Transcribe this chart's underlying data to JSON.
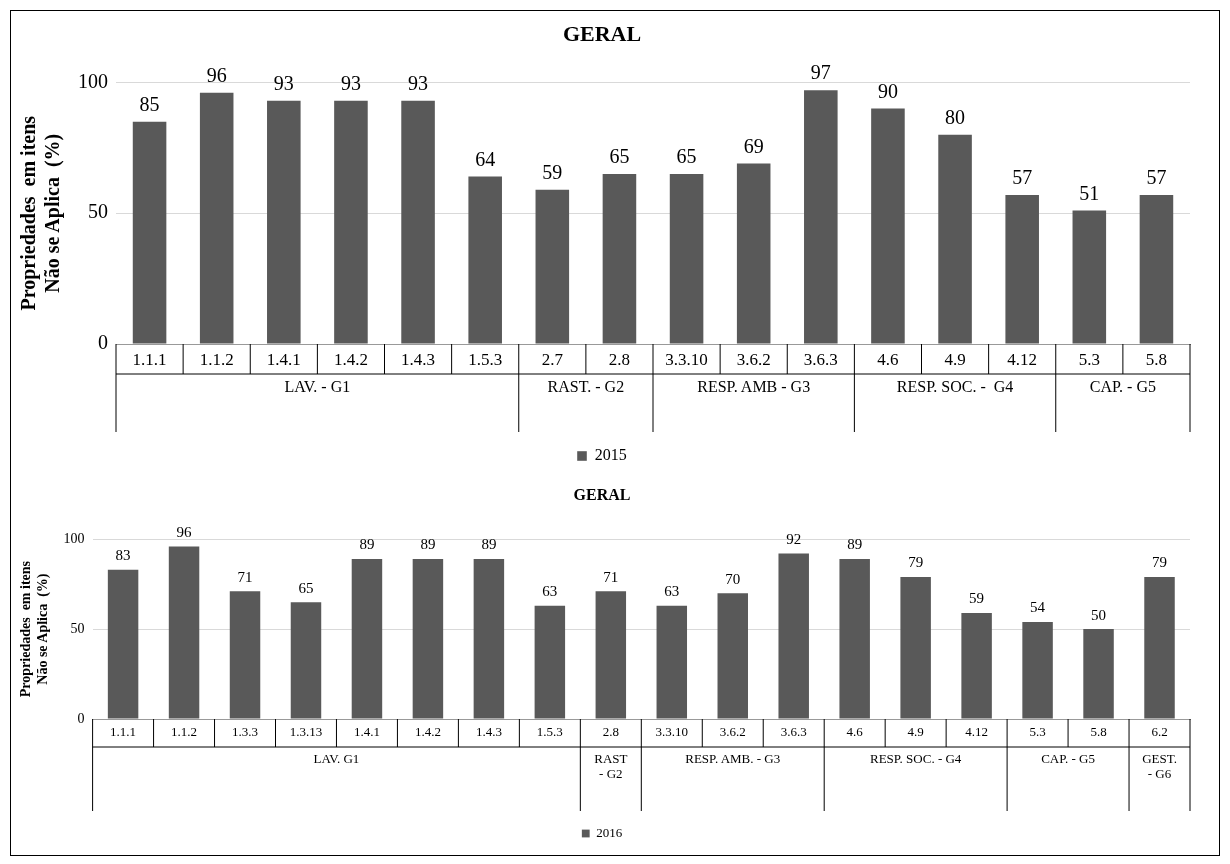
{
  "chart_data": [
    {
      "type": "bar",
      "title": "GERAL",
      "ylabel": "Propriedades  em itens\nNão se Aplica  (%)",
      "categories": [
        "1.1.1",
        "1.1.2",
        "1.4.1",
        "1.4.2",
        "1.4.3",
        "1.5.3",
        "2.7",
        "2.8",
        "3.3.10",
        "3.6.2",
        "3.6.3",
        "4.6",
        "4.9",
        "4.12",
        "5.3",
        "5.8"
      ],
      "series": [
        {
          "name": "2015",
          "color": "#595959",
          "values": [
            85,
            96,
            93,
            93,
            93,
            64,
            59,
            65,
            65,
            69,
            97,
            90,
            80,
            57,
            51,
            57
          ]
        }
      ],
      "ylim": [
        0,
        100
      ],
      "yticks": [
        0,
        50,
        100
      ],
      "grid": "y",
      "legend": "bottom",
      "data_labels": true,
      "annotations": [
        "LAV. - G1",
        "RAST. - G2",
        "RESP. AMB - G3",
        "RESP. SOC. -  G4",
        "CAP. - G5"
      ]
    },
    {
      "type": "bar",
      "title": "GERAL",
      "ylabel": "Propriedades  em itens\nNão se Aplica  (%)",
      "categories": [
        "1.1.1",
        "1.1.2",
        "1.3.3",
        "1.3.13",
        "1.4.1",
        "1.4.2",
        "1.4.3",
        "1.5.3",
        "2.8",
        "3.3.10",
        "3.6.2",
        "3.6.3",
        "4.6",
        "4.9",
        "4.12",
        "5.3",
        "5.8",
        "6.2"
      ],
      "series": [
        {
          "name": "2016",
          "color": "#595959",
          "values": [
            83,
            96,
            71,
            65,
            89,
            89,
            89,
            63,
            71,
            63,
            70,
            92,
            89,
            79,
            59,
            54,
            50,
            79
          ]
        }
      ],
      "ylim": [
        0,
        100
      ],
      "yticks": [
        0,
        50,
        100
      ],
      "grid": "y",
      "legend": "bottom",
      "data_labels": true,
      "annotations": [
        "LAV. G1",
        "RAST\n- G2",
        "RESP. AMB. - G3",
        "RESP. SOC. - G4",
        "CAP. - G5",
        "GEST.\n- G6"
      ]
    }
  ]
}
